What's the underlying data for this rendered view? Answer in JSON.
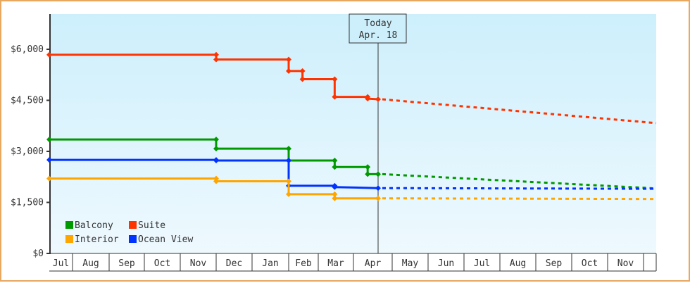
{
  "chart_data": {
    "type": "line",
    "subtype": "step-with-forecast",
    "title": "",
    "xlabel": "",
    "ylabel": "",
    "ylim": [
      0,
      7000
    ],
    "y_ticks": [
      {
        "value": 0,
        "label": "$0"
      },
      {
        "value": 1500,
        "label": "$1,500"
      },
      {
        "value": 3000,
        "label": "$3,000"
      },
      {
        "value": 4500,
        "label": "$4,500"
      },
      {
        "value": 6000,
        "label": "$6,000"
      }
    ],
    "x_months": [
      "Jul",
      "Aug",
      "Sep",
      "Oct",
      "Nov",
      "Dec",
      "Jan",
      "Feb",
      "Mar",
      "Apr",
      "May",
      "Jun",
      "Jul",
      "Aug",
      "Sep",
      "Oct",
      "Nov"
    ],
    "today_marker": {
      "line1": "Today",
      "line2": "Apr. 18"
    },
    "legend": [
      {
        "name": "Balcony",
        "color": "#009900"
      },
      {
        "name": "Suite",
        "color": "#ff3300"
      },
      {
        "name": "Interior",
        "color": "#ffa500"
      },
      {
        "name": "Ocean View",
        "color": "#0033ff"
      }
    ],
    "series": [
      {
        "name": "Suite",
        "color": "#ff3300",
        "history": [
          [
            "Jul 1",
            5840
          ],
          [
            "Dec 1",
            5840
          ],
          [
            "Dec 1",
            5700
          ],
          [
            "Feb 1",
            5700
          ],
          [
            "Feb 1",
            5360
          ],
          [
            "Feb 15",
            5360
          ],
          [
            "Feb 15",
            5120
          ],
          [
            "Mar 15",
            5120
          ],
          [
            "Mar 15",
            4600
          ],
          [
            "Apr 12",
            4600
          ],
          [
            "Apr 12",
            4550
          ],
          [
            "Apr 18",
            4530
          ]
        ],
        "forecast": [
          [
            "Apr 18",
            4530
          ],
          [
            "Dec 1",
            3830
          ]
        ]
      },
      {
        "name": "Balcony",
        "color": "#009900",
        "history": [
          [
            "Jul 1",
            3350
          ],
          [
            "Dec 1",
            3350
          ],
          [
            "Dec 1",
            3080
          ],
          [
            "Feb 1",
            3080
          ],
          [
            "Feb 1",
            2730
          ],
          [
            "Mar 15",
            2730
          ],
          [
            "Mar 15",
            2540
          ],
          [
            "Apr 12",
            2540
          ],
          [
            "Apr 12",
            2330
          ],
          [
            "Apr 18",
            2330
          ]
        ],
        "forecast": [
          [
            "Apr 18",
            2330
          ],
          [
            "Dec 1",
            1910
          ]
        ]
      },
      {
        "name": "Ocean View",
        "color": "#0033ff",
        "history": [
          [
            "Jul 1",
            2750
          ],
          [
            "Dec 1",
            2750
          ],
          [
            "Dec 1",
            2730
          ],
          [
            "Feb 1",
            2730
          ],
          [
            "Feb 1",
            1990
          ],
          [
            "Mar 15",
            1990
          ],
          [
            "Mar 15",
            1950
          ],
          [
            "Apr 18",
            1920
          ]
        ],
        "forecast": [
          [
            "Apr 18",
            1920
          ],
          [
            "Dec 1",
            1900
          ]
        ]
      },
      {
        "name": "Interior",
        "color": "#ffa500",
        "history": [
          [
            "Jul 1",
            2200
          ],
          [
            "Dec 1",
            2200
          ],
          [
            "Dec 1",
            2120
          ],
          [
            "Feb 1",
            2120
          ],
          [
            "Feb 1",
            1740
          ],
          [
            "Mar 15",
            1740
          ],
          [
            "Mar 15",
            1620
          ],
          [
            "Apr 18",
            1620
          ]
        ],
        "forecast": [
          [
            "Apr 18",
            1620
          ],
          [
            "Dec 1",
            1600
          ]
        ]
      }
    ]
  }
}
